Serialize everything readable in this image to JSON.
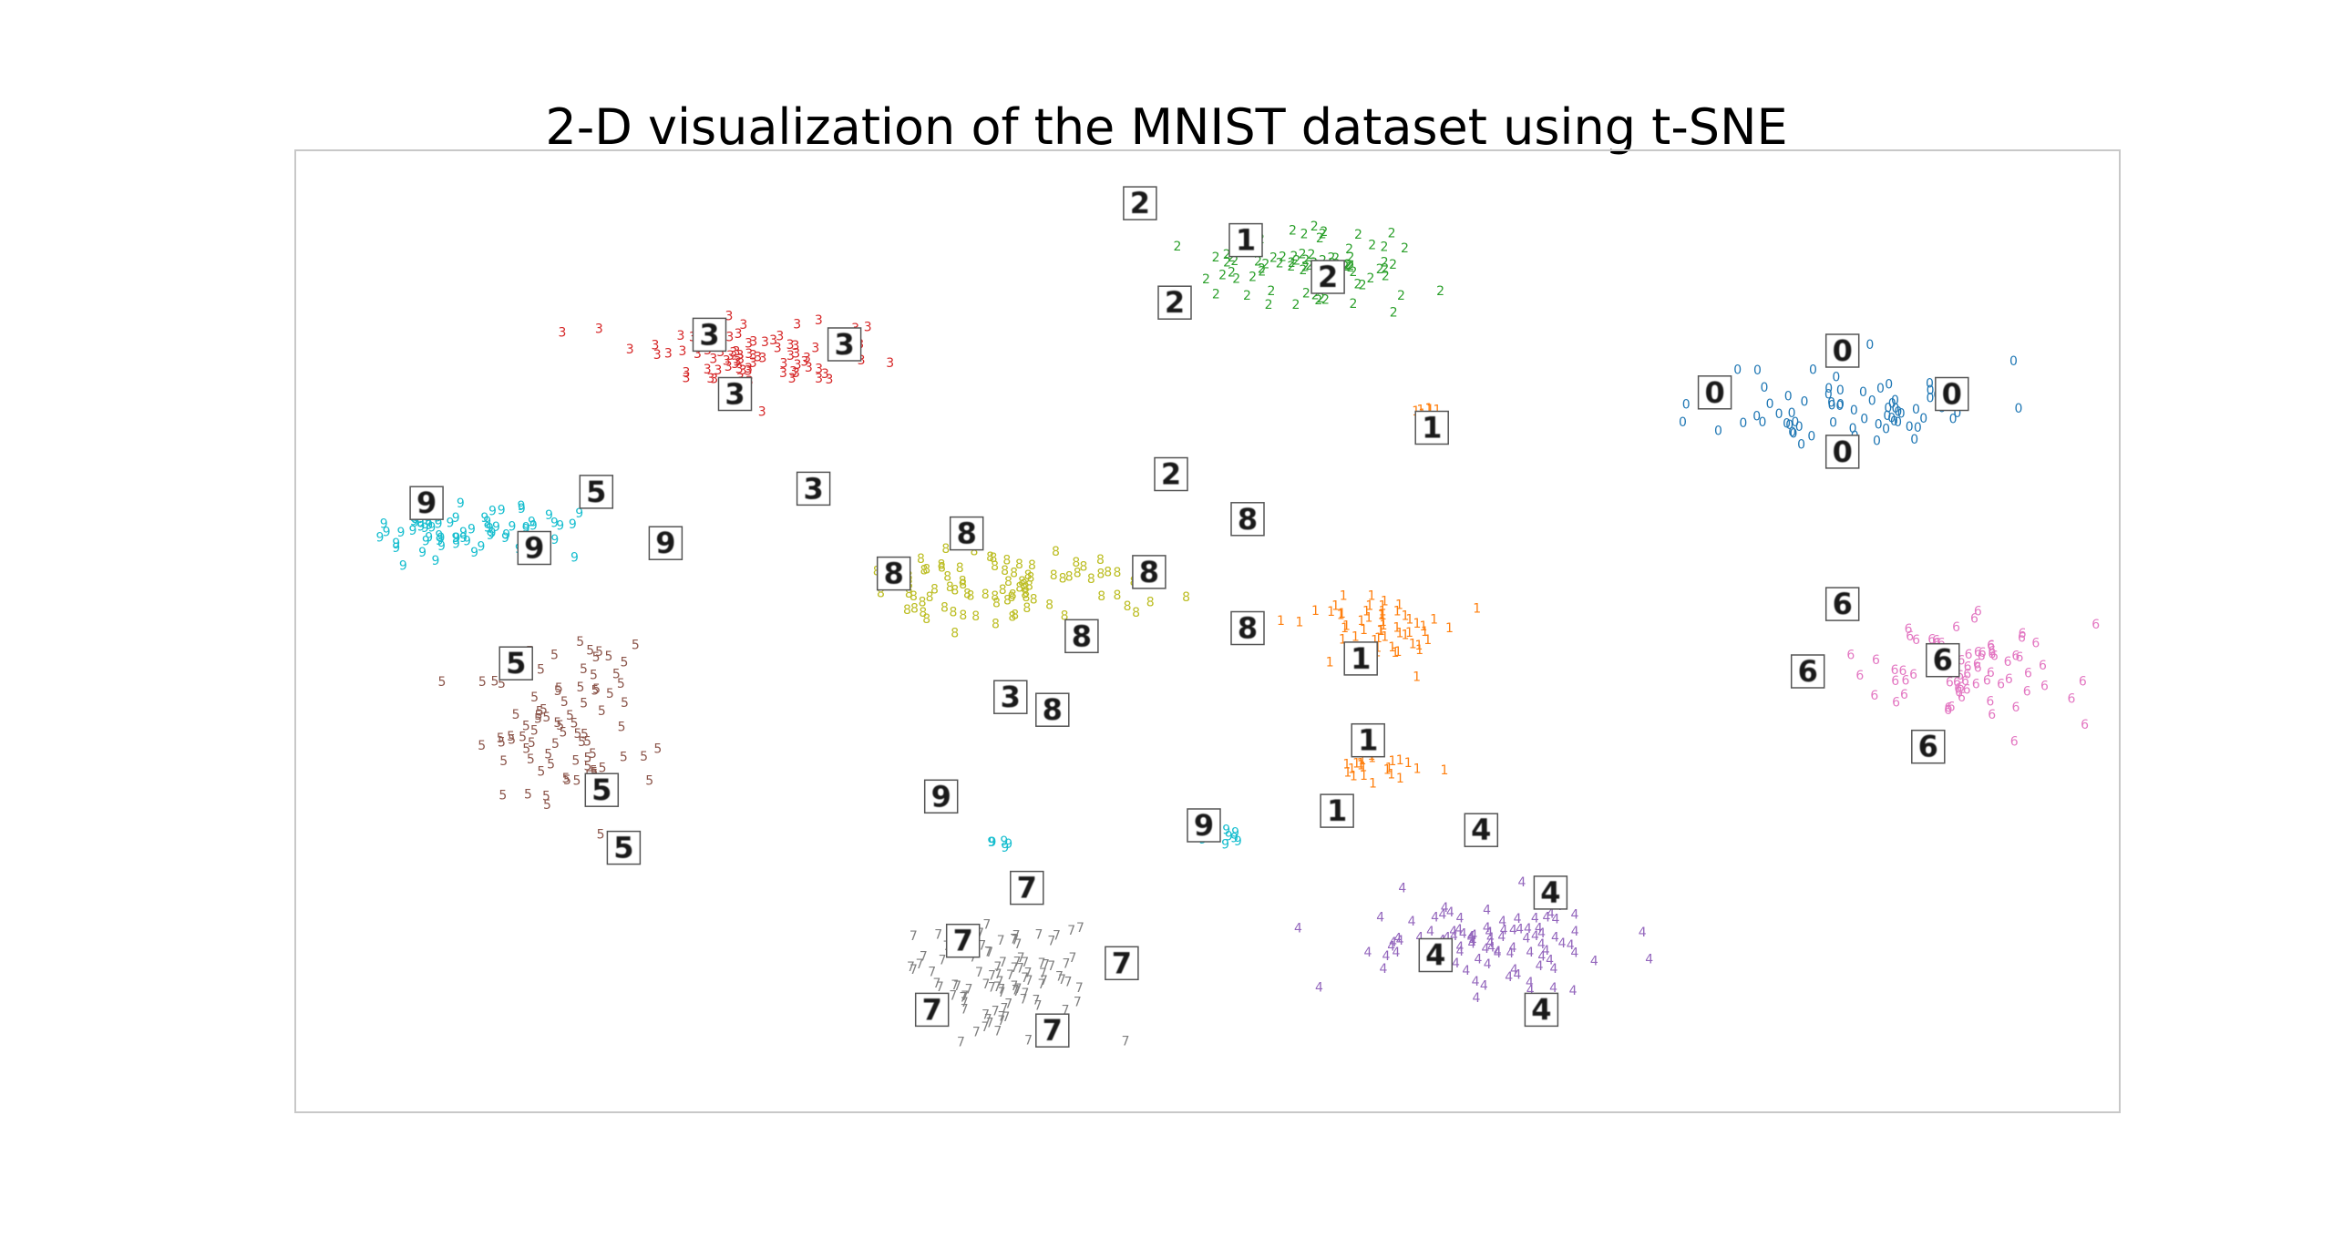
{
  "chart_data": {
    "type": "scatter",
    "title": "2-D visualization of the MNIST dataset using t-SNE",
    "xlabel": "",
    "ylabel": "",
    "axes_visible": false,
    "grid": false,
    "xlim": [
      0,
      1000
    ],
    "ylim": [
      0,
      600
    ],
    "marker": "digit-label",
    "series": [
      {
        "name": "0",
        "color": "#1f77b4",
        "n": 70,
        "center": [
          855,
          438
        ],
        "spread": [
          75,
          28
        ],
        "seed": 11
      },
      {
        "name": "1",
        "color": "#ff7f0e",
        "n": 55,
        "center": [
          600,
          300
        ],
        "spread": [
          45,
          20
        ],
        "seed": 12,
        "extra_clusters": [
          {
            "center": [
              590,
              212
            ],
            "spread": [
              28,
              14
            ],
            "n": 22
          },
          {
            "center": [
              620,
              435
            ],
            "spread": [
              7,
              3
            ],
            "n": 6
          }
        ]
      },
      {
        "name": "2",
        "color": "#2ca02c",
        "n": 85,
        "center": [
          555,
          525
        ],
        "spread": [
          62,
          24
        ],
        "seed": 13
      },
      {
        "name": "3",
        "color": "#d62728",
        "n": 80,
        "center": [
          260,
          470
        ],
        "spread": [
          78,
          22
        ],
        "seed": 14
      },
      {
        "name": "4",
        "color": "#9467bd",
        "n": 95,
        "center": [
          660,
          105
        ],
        "spread": [
          70,
          28
        ],
        "seed": 15
      },
      {
        "name": "5",
        "color": "#8c564b",
        "n": 85,
        "center": [
          150,
          240
        ],
        "spread": [
          45,
          55
        ],
        "seed": 16
      },
      {
        "name": "6",
        "color": "#e377c2",
        "n": 75,
        "center": [
          915,
          270
        ],
        "spread": [
          55,
          30
        ],
        "seed": 17
      },
      {
        "name": "7",
        "color": "#7f7f7f",
        "n": 95,
        "center": [
          390,
          80
        ],
        "spread": [
          45,
          38
        ],
        "seed": 18
      },
      {
        "name": "8",
        "color": "#bcbd22",
        "n": 85,
        "center": [
          390,
          325
        ],
        "spread": [
          72,
          24
        ],
        "seed": 19
      },
      {
        "name": "9",
        "color": "#17becf",
        "n": 70,
        "center": [
          95,
          360
        ],
        "spread": [
          55,
          18
        ],
        "seed": 20,
        "extra_clusters": [
          {
            "center": [
              510,
              170
            ],
            "spread": [
              18,
              6
            ],
            "n": 10
          },
          {
            "center": [
              385,
              165
            ],
            "spread": [
              6,
              3
            ],
            "n": 5
          }
        ]
      }
    ],
    "thumbnails": [
      {
        "digit": "0",
        "x": 778,
        "y": 449
      },
      {
        "digit": "0",
        "x": 848,
        "y": 475
      },
      {
        "digit": "0",
        "x": 908,
        "y": 448
      },
      {
        "digit": "0",
        "x": 848,
        "y": 412
      },
      {
        "digit": "1",
        "x": 521,
        "y": 544
      },
      {
        "digit": "1",
        "x": 623,
        "y": 427
      },
      {
        "digit": "1",
        "x": 584,
        "y": 283
      },
      {
        "digit": "1",
        "x": 588,
        "y": 232
      },
      {
        "digit": "1",
        "x": 571,
        "y": 188
      },
      {
        "digit": "2",
        "x": 463,
        "y": 567
      },
      {
        "digit": "2",
        "x": 566,
        "y": 521
      },
      {
        "digit": "2",
        "x": 482,
        "y": 505
      },
      {
        "digit": "2",
        "x": 480,
        "y": 398
      },
      {
        "digit": "3",
        "x": 227,
        "y": 485
      },
      {
        "digit": "3",
        "x": 301,
        "y": 479
      },
      {
        "digit": "3",
        "x": 241,
        "y": 448
      },
      {
        "digit": "3",
        "x": 284,
        "y": 389
      },
      {
        "digit": "3",
        "x": 392,
        "y": 259
      },
      {
        "digit": "4",
        "x": 650,
        "y": 176
      },
      {
        "digit": "4",
        "x": 688,
        "y": 137
      },
      {
        "digit": "4",
        "x": 625,
        "y": 98
      },
      {
        "digit": "4",
        "x": 683,
        "y": 64
      },
      {
        "digit": "5",
        "x": 165,
        "y": 387
      },
      {
        "digit": "5",
        "x": 121,
        "y": 280
      },
      {
        "digit": "5",
        "x": 168,
        "y": 201
      },
      {
        "digit": "5",
        "x": 180,
        "y": 165
      },
      {
        "digit": "6",
        "x": 848,
        "y": 317
      },
      {
        "digit": "6",
        "x": 829,
        "y": 275
      },
      {
        "digit": "6",
        "x": 903,
        "y": 282
      },
      {
        "digit": "6",
        "x": 895,
        "y": 228
      },
      {
        "digit": "7",
        "x": 401,
        "y": 140
      },
      {
        "digit": "7",
        "x": 366,
        "y": 107
      },
      {
        "digit": "7",
        "x": 453,
        "y": 93
      },
      {
        "digit": "7",
        "x": 349,
        "y": 64
      },
      {
        "digit": "7",
        "x": 415,
        "y": 51
      },
      {
        "digit": "8",
        "x": 368,
        "y": 361
      },
      {
        "digit": "8",
        "x": 328,
        "y": 336
      },
      {
        "digit": "8",
        "x": 468,
        "y": 337
      },
      {
        "digit": "8",
        "x": 431,
        "y": 297
      },
      {
        "digit": "8",
        "x": 522,
        "y": 370
      },
      {
        "digit": "8",
        "x": 415,
        "y": 251
      },
      {
        "digit": "8",
        "x": 522,
        "y": 302
      },
      {
        "digit": "9",
        "x": 72,
        "y": 380
      },
      {
        "digit": "9",
        "x": 131,
        "y": 352
      },
      {
        "digit": "9",
        "x": 203,
        "y": 355
      },
      {
        "digit": "9",
        "x": 354,
        "y": 197
      },
      {
        "digit": "9",
        "x": 498,
        "y": 179
      }
    ]
  }
}
